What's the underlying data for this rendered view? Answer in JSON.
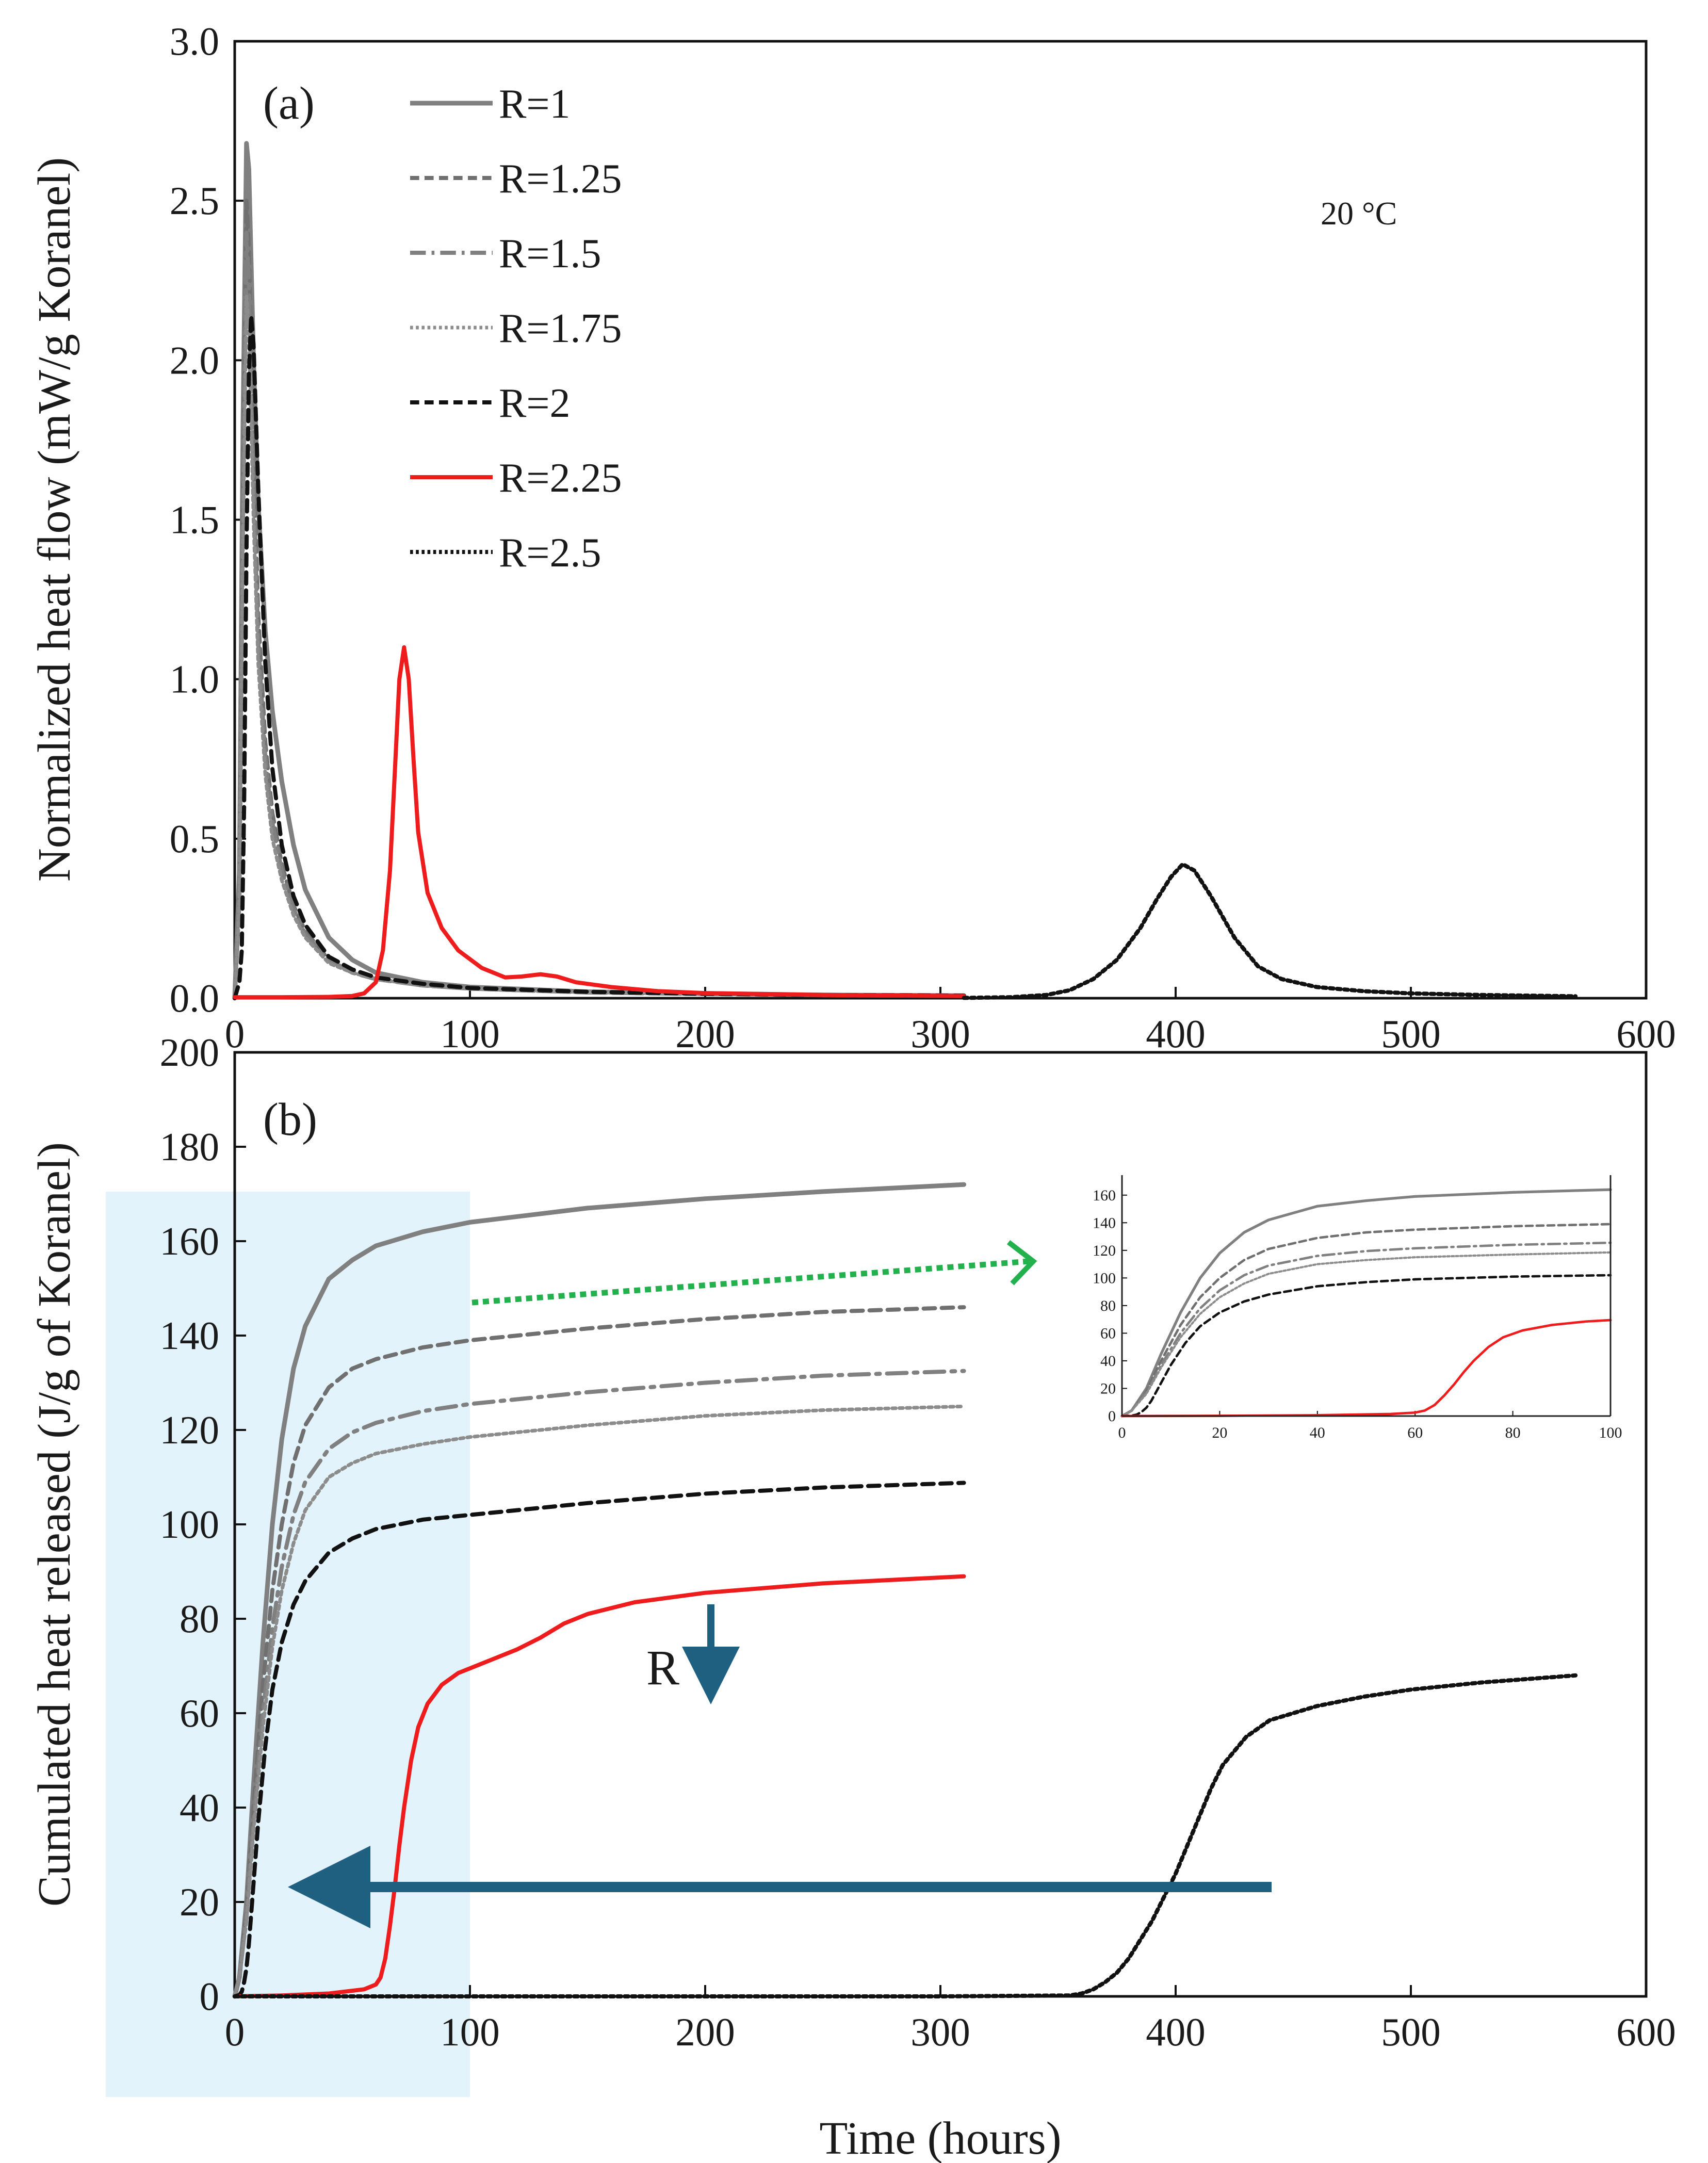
{
  "figure": {
    "x_axis_label": "Time (hours)",
    "temperature_label": "20 °C",
    "shade_color": "#e3f3fb",
    "arrow_color": "#1f5f7f",
    "green_color": "#22b14c",
    "r_arrow_label": "R"
  },
  "legend": [
    {
      "label": "R=1",
      "color": "#808080",
      "dash": "solid",
      "width": 9
    },
    {
      "label": "R=1.25",
      "color": "#707070",
      "dash": "dash",
      "width": 8
    },
    {
      "label": "R=1.5",
      "color": "#808080",
      "dash": "dashdot",
      "width": 8
    },
    {
      "label": "R=1.75",
      "color": "#8c8c8c",
      "dash": "dot",
      "width": 7
    },
    {
      "label": "R=2",
      "color": "#111111",
      "dash": "dash",
      "width": 8
    },
    {
      "label": "R=2.25",
      "color": "#ee1c1c",
      "dash": "solid",
      "width": 8
    },
    {
      "label": "R=2.5",
      "color": "#111111",
      "dash": "dot",
      "width": 8
    }
  ],
  "chart_data": [
    {
      "type": "line",
      "panel": "(a)",
      "title": "",
      "xlabel": "",
      "ylabel": "Normalized heat flow (mW/g  Koranel)",
      "xlim": [
        0,
        600
      ],
      "ylim": [
        0,
        3.0
      ],
      "x_ticks": [
        0,
        100,
        200,
        300,
        400,
        500,
        600
      ],
      "y_ticks": [
        "0.0",
        "0.5",
        "1.0",
        "1.5",
        "2.0",
        "2.5",
        "3.0"
      ],
      "series": [
        {
          "name": "R=1",
          "x": [
            0,
            2,
            3.5,
            5,
            6,
            8,
            10,
            13,
            16,
            20,
            25,
            30,
            40,
            50,
            60,
            80,
            100,
            150,
            200,
            250,
            310
          ],
          "y": [
            0,
            0.4,
            1.8,
            2.68,
            2.6,
            2.0,
            1.55,
            1.15,
            0.9,
            0.68,
            0.48,
            0.34,
            0.19,
            0.12,
            0.08,
            0.05,
            0.035,
            0.02,
            0.015,
            0.01,
            0.008
          ]
        },
        {
          "name": "R=1.25",
          "x": [
            0,
            2,
            3.5,
            5,
            6,
            8,
            10,
            13,
            16,
            20,
            25,
            30,
            40,
            50,
            60,
            80,
            100,
            150,
            200,
            250,
            310
          ],
          "y": [
            0,
            0.3,
            1.6,
            2.5,
            2.35,
            1.7,
            1.2,
            0.8,
            0.58,
            0.42,
            0.29,
            0.21,
            0.12,
            0.08,
            0.06,
            0.04,
            0.03,
            0.018,
            0.013,
            0.01,
            0.008
          ]
        },
        {
          "name": "R=1.5",
          "x": [
            0,
            2,
            3.5,
            5,
            6,
            8,
            10,
            13,
            16,
            20,
            25,
            30,
            40,
            50,
            60,
            80,
            100,
            150,
            200,
            250,
            310
          ],
          "y": [
            0,
            0.3,
            1.5,
            2.4,
            2.25,
            1.6,
            1.12,
            0.75,
            0.55,
            0.4,
            0.28,
            0.2,
            0.12,
            0.08,
            0.06,
            0.04,
            0.03,
            0.018,
            0.013,
            0.01,
            0.008
          ]
        },
        {
          "name": "R=1.75",
          "x": [
            0,
            2,
            3.5,
            5,
            6,
            8,
            10,
            13,
            16,
            20,
            25,
            30,
            40,
            50,
            60,
            80,
            100,
            150,
            200,
            250,
            310
          ],
          "y": [
            0,
            0.3,
            1.4,
            2.2,
            2.1,
            1.5,
            1.05,
            0.7,
            0.5,
            0.37,
            0.26,
            0.19,
            0.11,
            0.08,
            0.06,
            0.04,
            0.03,
            0.018,
            0.013,
            0.01,
            0.008
          ]
        },
        {
          "name": "R=2",
          "x": [
            0,
            2,
            3,
            4,
            5,
            6,
            7,
            8,
            10,
            13,
            16,
            20,
            25,
            30,
            40,
            50,
            60,
            80,
            100,
            150,
            200,
            250,
            310
          ],
          "y": [
            0,
            0.05,
            0.15,
            0.6,
            1.4,
            1.95,
            2.14,
            2.05,
            1.6,
            1.05,
            0.72,
            0.48,
            0.32,
            0.23,
            0.13,
            0.09,
            0.065,
            0.045,
            0.032,
            0.02,
            0.014,
            0.01,
            0.008
          ]
        },
        {
          "name": "R=2.25",
          "x": [
            0,
            20,
            40,
            50,
            55,
            60,
            63,
            66,
            68,
            70,
            72,
            74,
            76,
            78,
            82,
            88,
            95,
            105,
            115,
            122,
            130,
            137,
            145,
            160,
            180,
            200,
            250,
            310
          ],
          "y": [
            0.003,
            0.003,
            0.004,
            0.007,
            0.015,
            0.05,
            0.15,
            0.4,
            0.7,
            1.0,
            1.1,
            1.0,
            0.75,
            0.52,
            0.33,
            0.22,
            0.15,
            0.095,
            0.065,
            0.068,
            0.075,
            0.068,
            0.05,
            0.035,
            0.022,
            0.016,
            0.01,
            0.007
          ]
        },
        {
          "name": "R=2.5",
          "x": [
            310,
            330,
            345,
            355,
            365,
            375,
            385,
            392,
            398,
            403,
            408,
            415,
            425,
            435,
            445,
            460,
            480,
            500,
            530,
            570
          ],
          "y": [
            0.001,
            0.003,
            0.01,
            0.025,
            0.06,
            0.12,
            0.22,
            0.31,
            0.38,
            0.42,
            0.4,
            0.32,
            0.19,
            0.1,
            0.06,
            0.035,
            0.022,
            0.015,
            0.01,
            0.006
          ]
        }
      ]
    },
    {
      "type": "line",
      "panel": "(b)",
      "title": "",
      "xlabel": "Time (hours)",
      "ylabel": "Cumulated heat released (J/g of Koranel)",
      "xlim": [
        0,
        600
      ],
      "ylim": [
        0,
        200
      ],
      "x_ticks": [
        0,
        100,
        200,
        300,
        400,
        500,
        600
      ],
      "y_ticks": [
        0,
        20,
        40,
        60,
        80,
        100,
        120,
        140,
        160,
        180,
        200
      ],
      "shaded_region_x": [
        0,
        100
      ],
      "series": [
        {
          "name": "R=1",
          "x": [
            0,
            2,
            5,
            8,
            12,
            16,
            20,
            25,
            30,
            40,
            50,
            60,
            80,
            100,
            150,
            200,
            250,
            310
          ],
          "y": [
            0,
            4,
            20,
            45,
            75,
            100,
            118,
            133,
            142,
            152,
            156,
            159,
            162,
            164,
            167,
            169,
            170.5,
            172
          ]
        },
        {
          "name": "R=1.25",
          "x": [
            0,
            2,
            5,
            8,
            12,
            16,
            20,
            25,
            30,
            40,
            50,
            60,
            80,
            100,
            150,
            200,
            250,
            310
          ],
          "y": [
            0,
            4,
            18,
            40,
            66,
            86,
            100,
            113,
            121,
            129,
            133,
            135,
            137.5,
            139,
            141.5,
            143.5,
            145,
            146
          ]
        },
        {
          "name": "R=1.5",
          "x": [
            0,
            2,
            5,
            8,
            12,
            16,
            20,
            25,
            30,
            40,
            50,
            60,
            80,
            100,
            150,
            200,
            250,
            310
          ],
          "y": [
            0,
            4,
            17,
            37,
            60,
            78,
            91,
            102,
            109,
            116,
            119.5,
            121.5,
            124,
            125.5,
            128,
            130,
            131.5,
            132.5
          ]
        },
        {
          "name": "R=1.75",
          "x": [
            0,
            2,
            5,
            8,
            12,
            16,
            20,
            25,
            30,
            40,
            50,
            60,
            80,
            100,
            150,
            200,
            250,
            310
          ],
          "y": [
            0,
            4,
            16,
            35,
            57,
            74,
            86,
            96,
            103,
            110,
            113,
            115,
            117,
            118.5,
            121,
            123,
            124.2,
            125
          ]
        },
        {
          "name": "R=2",
          "x": [
            0,
            2,
            3,
            4,
            5,
            6,
            8,
            10,
            13,
            16,
            20,
            25,
            30,
            40,
            50,
            60,
            80,
            100,
            150,
            200,
            250,
            310
          ],
          "y": [
            0,
            0.3,
            1,
            3,
            6,
            11,
            24,
            37,
            53,
            65,
            75,
            83,
            88,
            94,
            97,
            99,
            101,
            102,
            104.5,
            106.5,
            107.8,
            108.8
          ]
        },
        {
          "name": "R=2.25",
          "x": [
            0,
            20,
            40,
            55,
            60,
            62,
            64,
            66,
            68,
            70,
            72,
            75,
            78,
            82,
            88,
            95,
            100,
            110,
            120,
            130,
            140,
            150,
            170,
            200,
            250,
            310
          ],
          "y": [
            0,
            0.2,
            0.6,
            1.5,
            2.5,
            4,
            8,
            15,
            23,
            32,
            40,
            50,
            57,
            62,
            66,
            68.5,
            69.5,
            71.5,
            73.5,
            76,
            79,
            81,
            83.5,
            85.5,
            87.5,
            89
          ]
        },
        {
          "name": "R=2.5",
          "x": [
            0,
            100,
            200,
            300,
            355,
            360,
            365,
            370,
            375,
            380,
            385,
            390,
            395,
            400,
            405,
            410,
            415,
            420,
            430,
            440,
            460,
            480,
            500,
            530,
            570
          ],
          "y": [
            0,
            0,
            0,
            0,
            0.2,
            0.6,
            1.5,
            3,
            5,
            8,
            12,
            16,
            21,
            26,
            32,
            38,
            44,
            49,
            55,
            58.5,
            61.5,
            63.5,
            65,
            66.5,
            68
          ]
        }
      ]
    },
    {
      "type": "line",
      "panel": "inset",
      "title": "",
      "xlabel": "",
      "ylabel": "",
      "xlim": [
        0,
        100
      ],
      "ylim": [
        0,
        170
      ],
      "x_ticks": [
        0,
        20,
        40,
        60,
        80,
        100
      ],
      "y_ticks": [
        0,
        20,
        40,
        60,
        80,
        100,
        120,
        140,
        160
      ],
      "series": [
        {
          "name": "R=1",
          "x": [
            0,
            2,
            5,
            8,
            12,
            16,
            20,
            25,
            30,
            40,
            50,
            60,
            80,
            100
          ],
          "y": [
            0,
            4,
            20,
            45,
            75,
            100,
            118,
            133,
            142,
            152,
            156,
            159,
            162,
            164
          ]
        },
        {
          "name": "R=1.25",
          "x": [
            0,
            2,
            5,
            8,
            12,
            16,
            20,
            25,
            30,
            40,
            50,
            60,
            80,
            100
          ],
          "y": [
            0,
            4,
            18,
            40,
            66,
            86,
            100,
            113,
            121,
            129,
            133,
            135,
            137.5,
            139
          ]
        },
        {
          "name": "R=1.5",
          "x": [
            0,
            2,
            5,
            8,
            12,
            16,
            20,
            25,
            30,
            40,
            50,
            60,
            80,
            100
          ],
          "y": [
            0,
            4,
            17,
            37,
            60,
            78,
            91,
            102,
            109,
            116,
            119.5,
            121.5,
            124,
            125.5
          ]
        },
        {
          "name": "R=1.75",
          "x": [
            0,
            2,
            5,
            8,
            12,
            16,
            20,
            25,
            30,
            40,
            50,
            60,
            80,
            100
          ],
          "y": [
            0,
            4,
            16,
            35,
            57,
            74,
            86,
            96,
            103,
            110,
            113,
            115,
            117,
            118.5
          ]
        },
        {
          "name": "R=2",
          "x": [
            0,
            2,
            3,
            4,
            5,
            6,
            8,
            10,
            13,
            16,
            20,
            25,
            30,
            40,
            50,
            60,
            80,
            100
          ],
          "y": [
            0,
            0.3,
            1,
            3,
            6,
            11,
            24,
            37,
            53,
            65,
            75,
            83,
            88,
            94,
            97,
            99,
            101,
            102
          ]
        },
        {
          "name": "R=2.25",
          "x": [
            0,
            20,
            40,
            55,
            60,
            62,
            64,
            66,
            68,
            70,
            72,
            75,
            78,
            82,
            88,
            95,
            100
          ],
          "y": [
            0,
            0.2,
            0.6,
            1.5,
            2.5,
            4,
            8,
            15,
            23,
            32,
            40,
            50,
            57,
            62,
            66,
            68.5,
            69.5
          ]
        }
      ]
    }
  ]
}
